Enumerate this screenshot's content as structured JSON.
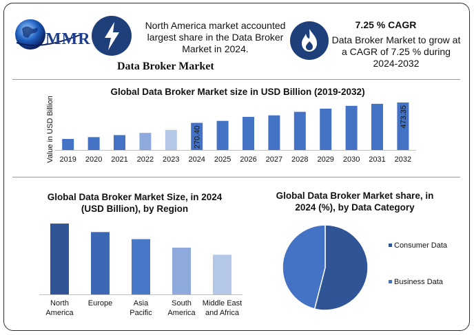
{
  "brand": {
    "logo_text": "MMR",
    "report_title": "Data Broker Market"
  },
  "highlights": {
    "region_text": "North America market accounted largest share in the Data Broker Market in 2024.",
    "cagr_title": "7.25 % CAGR",
    "cagr_text": "Data Broker Market to grow at a CAGR of 7.25 % during 2024-2032"
  },
  "colors": {
    "dark_blue": "#4472c4",
    "light_blue": "#8ea9db",
    "pale_blue": "#b4c7e7",
    "icon_navy": "#1f3f7a",
    "slice_dark": "#2f5597",
    "slice_light": "#4472c4"
  },
  "icons": {
    "lightning": "lightning-bolt-icon",
    "fire": "flame-icon",
    "globe": "globe-logo-icon"
  },
  "chart_data": [
    {
      "type": "bar",
      "title": "Global Data Broker Market size in USD Billion (2019-2032)",
      "ylabel": "Value in USD Billion",
      "xlabel": "",
      "categories": [
        "2019",
        "2020",
        "2021",
        "2022",
        "2023",
        "2024",
        "2025",
        "2026",
        "2027",
        "2028",
        "2029",
        "2030",
        "2031",
        "2032"
      ],
      "values": [
        110,
        128,
        148,
        170,
        200,
        270.4,
        290,
        330,
        345,
        380,
        412,
        440,
        460,
        473.35
      ],
      "data_labels": {
        "2024": "270.40",
        "2032": "473.35"
      },
      "bar_colors": [
        "#4472c4",
        "#4472c4",
        "#4472c4",
        "#8ea9db",
        "#b4c7e7",
        "#4472c4",
        "#4472c4",
        "#4472c4",
        "#4472c4",
        "#4472c4",
        "#4472c4",
        "#4472c4",
        "#4472c4",
        "#4472c4"
      ],
      "ylim": [
        0,
        480
      ],
      "grid": false
    },
    {
      "type": "bar",
      "title": "Global Data Broker Market Size, in 2024 (USD Billion), by Region",
      "categories": [
        "North America",
        "Europe",
        "Asia Pacific",
        "South America",
        "Middle East and Africa"
      ],
      "values": [
        100,
        88,
        78,
        66,
        56
      ],
      "bar_colors": [
        "#2f5597",
        "#3d67b5",
        "#4a78c9",
        "#8ea9db",
        "#b4c7e7"
      ],
      "ylim": [
        0,
        100
      ],
      "grid": false
    },
    {
      "type": "pie",
      "title": "Global Data Broker Market share, in 2024 (%), by Data Category",
      "labels": [
        "Consumer Data",
        "Business Data"
      ],
      "values": [
        54,
        46
      ],
      "colors": [
        "#2f5597",
        "#4472c4"
      ],
      "legend": "right"
    }
  ]
}
